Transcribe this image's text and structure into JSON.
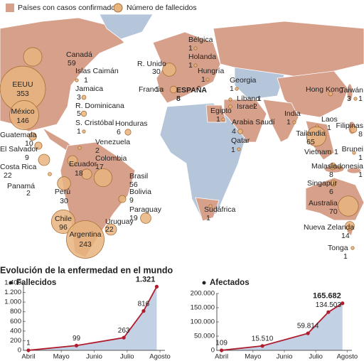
{
  "legend": {
    "countries": "Países con casos confirmados",
    "deaths": "Número de fallecidos"
  },
  "map": {
    "countries": [
      {
        "name": "Canadá",
        "value": 59
      },
      {
        "name": "EEUU",
        "value": 353
      },
      {
        "name": "México",
        "value": 146
      },
      {
        "name": "Islas Caimán",
        "value": 1
      },
      {
        "name": "Jamaica",
        "value": 3
      },
      {
        "name": "R. Dominicana",
        "value": 5
      },
      {
        "name": "S. Cristóbal",
        "value": 1
      },
      {
        "name": "Honduras",
        "value": 6
      },
      {
        "name": "Guatemala",
        "value": 10
      },
      {
        "name": "El Salvador",
        "value": 9
      },
      {
        "name": "Costa Rica",
        "value": 22
      },
      {
        "name": "Panamá",
        "value": 2
      },
      {
        "name": "Venezuela",
        "value": 2
      },
      {
        "name": "Colombia",
        "value": 17
      },
      {
        "name": "Ecuador",
        "value": 18
      },
      {
        "name": "Perú",
        "value": 30
      },
      {
        "name": "Brasil",
        "value": 56
      },
      {
        "name": "Bolivia",
        "value": 9
      },
      {
        "name": "Paraguay",
        "value": 19
      },
      {
        "name": "Chile",
        "value": 96
      },
      {
        "name": "Argentina",
        "value": 243
      },
      {
        "name": "Uruguay",
        "value": 22
      },
      {
        "name": "Bélgica",
        "value": 1
      },
      {
        "name": "Holanda",
        "value": 1
      },
      {
        "name": "R. Unido",
        "value": 30
      },
      {
        "name": "Hungría",
        "value": 1
      },
      {
        "name": "Francia",
        "value": 1
      },
      {
        "name": "ESPAÑA",
        "value": 8
      },
      {
        "name": "Georgia",
        "value": 1
      },
      {
        "name": "Líbano",
        "value": 1
      },
      {
        "name": "Israel",
        "value": 2
      },
      {
        "name": "Egipto",
        "value": 1
      },
      {
        "name": "Arabia Saudí",
        "value": 4
      },
      {
        "name": "Qatar",
        "value": 1
      },
      {
        "name": "India",
        "value": 1
      },
      {
        "name": "Hong Kong",
        "value": 3
      },
      {
        "name": "Taiwán",
        "value": 1
      },
      {
        "name": "Laos",
        "value": 1
      },
      {
        "name": "Filipinas",
        "value": 8
      },
      {
        "name": "Tailandia",
        "value": 65
      },
      {
        "name": "Vietnam",
        "value": 1
      },
      {
        "name": "Brunei",
        "value": 1
      },
      {
        "name": "Malasia",
        "value": 8
      },
      {
        "name": "Indonesia",
        "value": 1
      },
      {
        "name": "Singapur",
        "value": 6
      },
      {
        "name": "Australia",
        "value": 70
      },
      {
        "name": "Nueva Zelanda",
        "value": 14
      },
      {
        "name": "Tonga",
        "value": 1
      },
      {
        "name": "Sudáfrica",
        "value": 1
      }
    ]
  },
  "section_title": "Evolución de la enfermedad en el mundo",
  "chart_data": [
    {
      "type": "area",
      "title": "Fallecidos",
      "color": "#b01c2e",
      "x": [
        0,
        1.46,
        2.9,
        3.5,
        3.9
      ],
      "values": [
        1,
        99,
        263,
        816,
        1321
      ],
      "value_labels": [
        "1",
        "99",
        "263",
        "816",
        "1.321"
      ],
      "xlim": [
        -0.15,
        4.15
      ],
      "xticks": [
        {
          "value": 0,
          "label": "Abril"
        },
        {
          "value": 1,
          "label": "Mayo"
        },
        {
          "value": 2,
          "label": "Junio"
        },
        {
          "value": 3,
          "label": "Julio"
        },
        {
          "value": 4,
          "label": "Agosto"
        }
      ],
      "ylim": [
        0,
        1400
      ],
      "yticks": [
        0,
        200,
        400,
        600,
        800,
        {
          "value": 1000,
          "label": "1.000"
        },
        {
          "value": 1200,
          "label": "1.200"
        },
        {
          "value": 1400,
          "label": "1.400"
        }
      ]
    },
    {
      "type": "area",
      "title": "Afectados",
      "color": "#b01c2e",
      "x": [
        0,
        1.3,
        2.75,
        3.4,
        3.85
      ],
      "values": [
        109,
        15510,
        59814,
        134503,
        165682
      ],
      "value_labels": [
        "109",
        "15.510",
        "59.814",
        "134.503",
        "165.682"
      ],
      "xlim": [
        -0.15,
        4.15
      ],
      "xticks": [
        {
          "value": 0,
          "label": "Abril"
        },
        {
          "value": 1,
          "label": "Mayo"
        },
        {
          "value": 2,
          "label": "Junio"
        },
        {
          "value": 3,
          "label": "Julio"
        },
        {
          "value": 4,
          "label": "Agosto"
        }
      ],
      "ylim": [
        0,
        200000
      ],
      "yticks": [
        0,
        {
          "value": 50000,
          "label": "50.000"
        },
        {
          "value": 100000,
          "label": "100.000"
        },
        {
          "value": 150000,
          "label": "150.000"
        },
        {
          "value": 200000,
          "label": "200.000"
        }
      ]
    }
  ]
}
